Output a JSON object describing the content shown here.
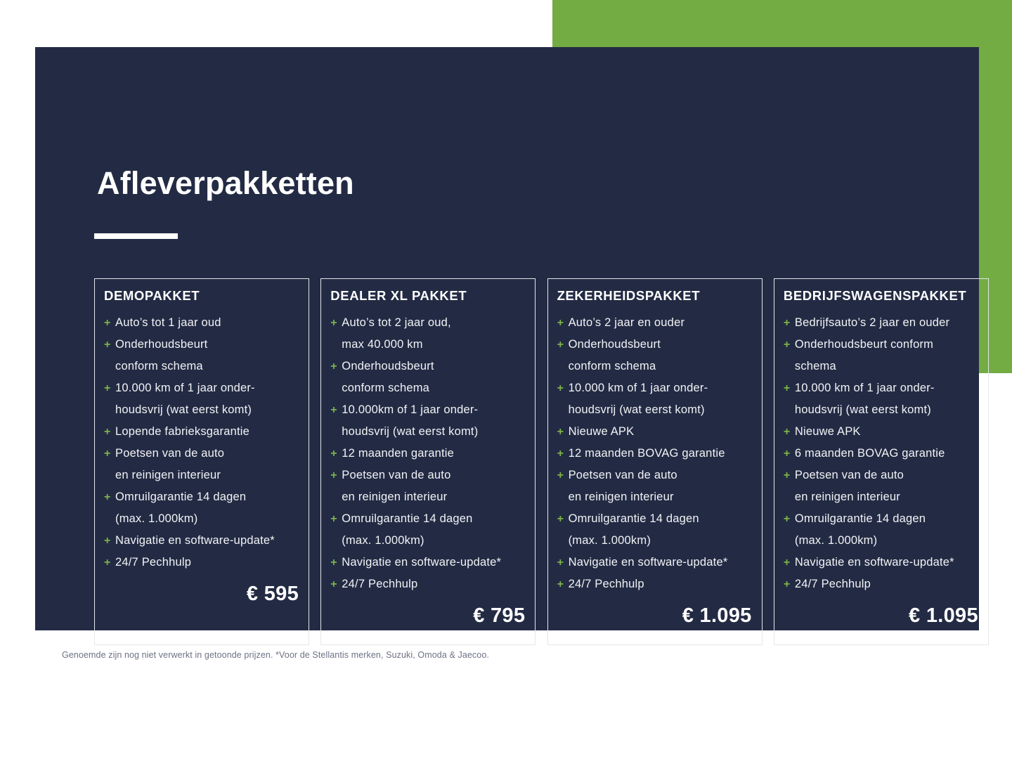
{
  "page": {
    "title": "Afleverpakketten"
  },
  "ui": {
    "plus_glyph": "+",
    "colors": {
      "panel_navy": "#232B44",
      "accent_green_block": "#74AC44",
      "plus_green": "#7CB347",
      "card_border": "#E4E7ED",
      "text_white": "#FFFFFF",
      "footnote_gray": "#6E7284"
    }
  },
  "packages": [
    {
      "title": "DEMOPAKKET",
      "items": [
        "Auto’s tot 1 jaar oud",
        "Onderhoudsbeurt\nconform schema",
        "10.000 km of 1 jaar onder-\nhoudsvrij (wat eerst komt)",
        "Lopende fabrieksgarantie",
        "Poetsen van de auto\nen reinigen interieur",
        "Omruilgarantie 14 dagen\n(max. 1.000km)",
        "Navigatie en software-update*",
        "24/7 Pechhulp"
      ],
      "price": "€ 595"
    },
    {
      "title": "DEALER XL PAKKET",
      "items": [
        "Auto’s tot 2 jaar oud,\nmax 40.000 km",
        "Onderhoudsbeurt\nconform schema",
        "10.000km of 1 jaar onder-\nhoudsvrij (wat eerst komt)",
        "12 maanden garantie",
        "Poetsen van de auto\nen reinigen interieur",
        "Omruilgarantie 14 dagen\n(max. 1.000km)",
        "Navigatie en software-update*",
        "24/7 Pechhulp"
      ],
      "price": "€ 795"
    },
    {
      "title": "ZEKERHEIDSPAKKET",
      "items": [
        "Auto’s 2 jaar en ouder",
        "Onderhoudsbeurt\nconform schema",
        "10.000 km of 1 jaar onder-\nhoudsvrij (wat eerst komt)",
        "Nieuwe APK",
        "12 maanden BOVAG garantie",
        "Poetsen van de auto\nen reinigen interieur",
        "Omruilgarantie 14 dagen\n(max. 1.000km)",
        "Navigatie en software-update*",
        "24/7 Pechhulp"
      ],
      "price": "€ 1.095"
    },
    {
      "title": "BEDRIJFSWAGENSPAKKET",
      "items": [
        "Bedrijfsauto’s 2 jaar en ouder",
        "Onderhoudsbeurt conform\nschema",
        "10.000 km of 1 jaar onder-\nhoudsvrij (wat eerst komt)",
        "Nieuwe APK",
        "6 maanden BOVAG garantie",
        "Poetsen van de auto\nen reinigen interieur",
        "Omruilgarantie 14 dagen\n(max. 1.000km)",
        "Navigatie en software-update*",
        "24/7 Pechhulp"
      ],
      "price": "€ 1.095"
    }
  ],
  "footnote": "Genoemde zijn nog niet verwerkt in getoonde prijzen. *Voor de Stellantis merken, Suzuki, Omoda & Jaecoo."
}
